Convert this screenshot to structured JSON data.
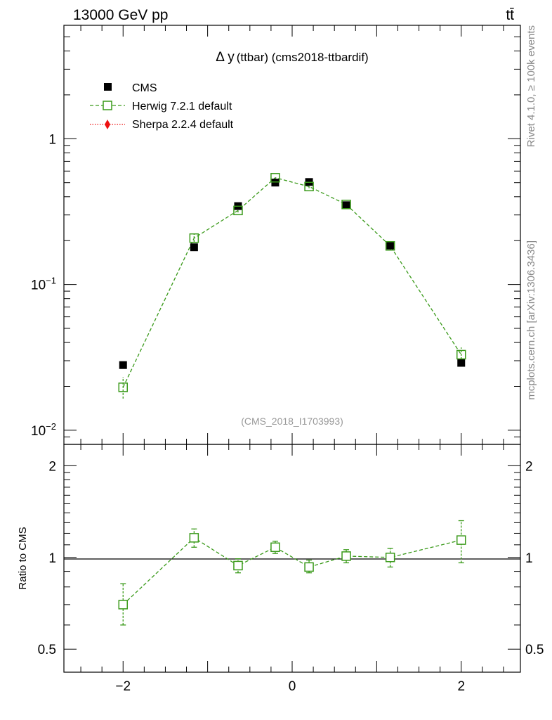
{
  "header": {
    "left": "13000 GeV pp",
    "right": "tt̄"
  },
  "side_text": {
    "top": "Rivet 4.1.0, ≥ 100k events",
    "bottom": "mcplots.cern.ch [arXiv:1306.3436]"
  },
  "chart_data": [
    {
      "type": "scatter",
      "panel": "main",
      "title_delta": "Δ y",
      "title_rest": "(ttbar) (cms2018-ttbardif)",
      "watermark": "(CMS_2018_I1703993)",
      "yscale": "log",
      "ylim": [
        0.008,
        6
      ],
      "xlim": [
        -2.7,
        2.7
      ],
      "y_ticks": [
        {
          "value": 1,
          "base": "1",
          "exp": ""
        },
        {
          "value": 0.1,
          "base": "10",
          "exp": "−1"
        },
        {
          "value": 0.01,
          "base": "10",
          "exp": "−2"
        }
      ],
      "x": [
        -2.0,
        -1.16,
        -0.64,
        -0.2,
        0.2,
        0.64,
        1.16,
        2.0
      ],
      "series": [
        {
          "name": "CMS",
          "marker": "filled-square",
          "color": "#000000",
          "line": "none",
          "values": [
            0.028,
            0.18,
            0.345,
            0.5,
            0.505,
            0.35,
            0.185,
            0.029
          ]
        },
        {
          "name": "Herwig 7.2.1 default",
          "marker": "open-square",
          "color": "#3a9a1a",
          "line": "dashed",
          "values": [
            0.0197,
            0.208,
            0.322,
            0.54,
            0.47,
            0.354,
            0.184,
            0.033
          ],
          "err_low": [
            0.0165,
            0.196,
            0.312,
            0.525,
            0.458,
            0.344,
            0.172,
            0.029
          ],
          "err_high": [
            0.0232,
            0.222,
            0.334,
            0.555,
            0.484,
            0.364,
            0.196,
            0.037
          ]
        },
        {
          "name": "Sherpa 2.2.4 default",
          "marker": "filled-diamond",
          "color": "#ee1111",
          "line": "dotted",
          "values": []
        }
      ]
    },
    {
      "type": "scatter",
      "panel": "ratio",
      "ylabel": "Ratio to CMS",
      "yscale": "log",
      "ylim": [
        0.42,
        2.35
      ],
      "xlim": [
        -2.7,
        2.7
      ],
      "y_ticks": [
        {
          "value": 2,
          "label": "2"
        },
        {
          "value": 1,
          "label": "1"
        },
        {
          "value": 0.5,
          "label": "0.5"
        }
      ],
      "x_ticks": [
        {
          "value": -2,
          "label": "−2"
        },
        {
          "value": 0,
          "label": "0"
        },
        {
          "value": 2,
          "label": "2"
        }
      ],
      "x": [
        -2.0,
        -1.16,
        -0.64,
        -0.2,
        0.2,
        0.64,
        1.16,
        2.0
      ],
      "series": [
        {
          "name": "Herwig 7.2.1 default",
          "color": "#3a9a1a",
          "values": [
            0.7,
            1.16,
            0.94,
            1.08,
            0.93,
            1.01,
            1.0,
            1.14
          ],
          "err_low": [
            0.6,
            1.08,
            0.89,
            1.03,
            0.89,
            0.96,
            0.93,
            0.96
          ],
          "err_high": [
            0.82,
            1.24,
            0.99,
            1.13,
            0.98,
            1.06,
            1.07,
            1.32
          ]
        }
      ]
    }
  ]
}
